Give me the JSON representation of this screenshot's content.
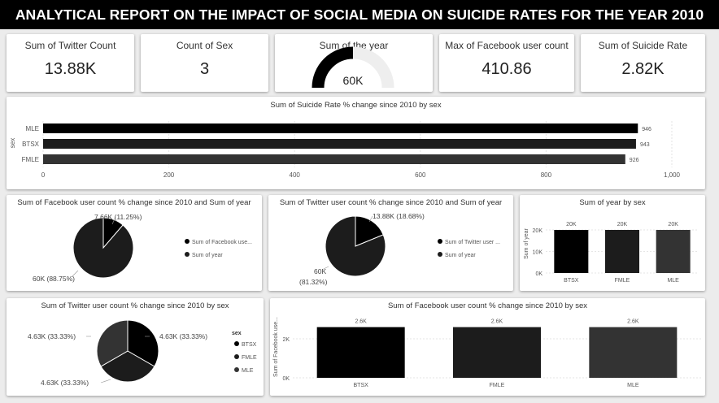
{
  "report_title": "ANALYTICAL REPORT ON THE IMPACT OF SOCIAL MEDIA ON SUICIDE RATES FOR THE YEAR 2010",
  "kpis": [
    {
      "title": "Sum of Twitter Count",
      "value": "13.88K"
    },
    {
      "title": "Count of Sex",
      "value": "3"
    },
    {
      "title": "Sum of the year",
      "value": "60K"
    },
    {
      "title": "Max of Facebook user count",
      "value": "410.86"
    },
    {
      "title": "Sum of Suicide Rate",
      "value": "2.82K"
    }
  ],
  "gauge_fraction": 0.5,
  "colors": {
    "dark1": "#000000",
    "dark2": "#1c1c1c",
    "dark3": "#333333"
  },
  "chart_data": [
    {
      "type": "bar",
      "orientation": "horizontal",
      "title": "Sum of Suicide Rate % change since 2010 by sex",
      "ylabel": "sex",
      "categories": [
        "MLE",
        "BTSX",
        "FMLE"
      ],
      "values": [
        946,
        943,
        926
      ],
      "value_labels": [
        "946",
        "943",
        "926"
      ],
      "xticks": [
        "0",
        "200",
        "400",
        "600",
        "800",
        "1,000"
      ],
      "xlim": [
        0,
        1000
      ],
      "grid": true
    },
    {
      "type": "pie",
      "title": "Sum of Facebook user count % change since 2010 and Sum of year",
      "slices": [
        {
          "name": "Sum of Facebook use...",
          "value": 7.66,
          "label": "7.66K (11.25%)"
        },
        {
          "name": "Sum of year",
          "value": 60,
          "label": "60K (88.75%)"
        }
      ]
    },
    {
      "type": "pie",
      "title": "Sum of Twitter user count % change since 2010 and Sum of year",
      "slices": [
        {
          "name": "Sum of Twitter user ...",
          "value": 13.88,
          "label": "13.88K (18.68%)"
        },
        {
          "name": "Sum of year",
          "value": 60,
          "label_line1": "60K",
          "label_line2": "(81.32%)"
        }
      ]
    },
    {
      "type": "bar",
      "title": "Sum of year by sex",
      "ylabel": "Sum of year",
      "categories": [
        "BTSX",
        "FMLE",
        "MLE"
      ],
      "values": [
        20000,
        20000,
        20000
      ],
      "value_labels": [
        "20K",
        "20K",
        "20K"
      ],
      "yticks": [
        "0K",
        "10K",
        "20K"
      ],
      "ylim": [
        0,
        20000
      ]
    },
    {
      "type": "pie",
      "title": "Sum of Twitter user count % change since 2010 by sex",
      "legend_title": "sex",
      "slices": [
        {
          "name": "BTSX",
          "value": 4.63,
          "label": "4.63K (33.33%)"
        },
        {
          "name": "FMLE",
          "value": 4.63,
          "label": "4.63K (33.33%)"
        },
        {
          "name": "MLE",
          "value": 4.63,
          "label": "4.63K (33.33%)"
        }
      ]
    },
    {
      "type": "bar",
      "title": "Sum of Facebook user count % change since 2010 by sex",
      "ylabel": "Sum of Facebook use...",
      "categories": [
        "BTSX",
        "FMLE",
        "MLE"
      ],
      "values": [
        2600,
        2600,
        2600
      ],
      "value_labels": [
        "2.6K",
        "2.6K",
        "2.6K"
      ],
      "yticks": [
        "0K",
        "2K"
      ],
      "ylim": [
        0,
        3000
      ]
    }
  ]
}
